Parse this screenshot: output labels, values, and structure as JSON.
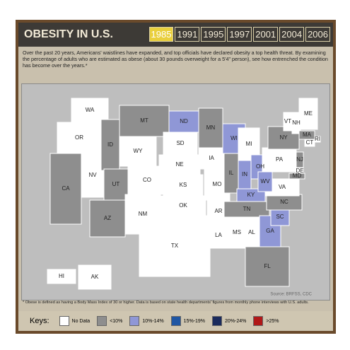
{
  "header": {
    "title": "OBESITY IN U.S.",
    "years": [
      "1985",
      "1991",
      "1995",
      "1997",
      "2001",
      "2004",
      "2006"
    ],
    "selected_year": "1985"
  },
  "description": "Over the past 20 years, Americans' waistlines have expanded, and top officials have declared obesity a top health threat. By examining the percentage of adults who are estimated as obese (about 30 pounds overweight for a 5'4\" person), see how entrenched the condition has become over the years.*",
  "footnote": "* Obese is defined as having a Body Mass Index of 30 or higher. Data is based on state health departments' figures from monthly phone interviews with U.S. adults.",
  "source": "Source: BRFSS, CDC",
  "keys_label": "Keys:",
  "keys": [
    {
      "label": "No Data",
      "color": "#ffffff"
    },
    {
      "label": "<10%",
      "color": "#8e8e8e"
    },
    {
      "label": "10%-14%",
      "color": "#8f97d6"
    },
    {
      "label": "15%-19%",
      "color": "#1f56a3"
    },
    {
      "label": "20%-24%",
      "color": "#1b2b5c"
    },
    {
      "label": ">25%",
      "color": "#b01818"
    }
  ],
  "states": [
    {
      "label": "WA",
      "category": "No Data"
    },
    {
      "label": "OR",
      "category": "No Data"
    },
    {
      "label": "CA",
      "category": "<10%"
    },
    {
      "label": "NV",
      "category": "No Data"
    },
    {
      "label": "ID",
      "category": "<10%"
    },
    {
      "label": "MT",
      "category": "<10%"
    },
    {
      "label": "WY",
      "category": "No Data"
    },
    {
      "label": "UT",
      "category": "<10%"
    },
    {
      "label": "AZ",
      "category": "<10%"
    },
    {
      "label": "CO",
      "category": "No Data"
    },
    {
      "label": "NM",
      "category": "No Data"
    },
    {
      "label": "ND",
      "category": "10%-14%"
    },
    {
      "label": "SD",
      "category": "No Data"
    },
    {
      "label": "NE",
      "category": "No Data"
    },
    {
      "label": "KS",
      "category": "No Data"
    },
    {
      "label": "OK",
      "category": "No Data"
    },
    {
      "label": "TX",
      "category": "No Data"
    },
    {
      "label": "MN",
      "category": "<10%"
    },
    {
      "label": "IA",
      "category": "No Data"
    },
    {
      "label": "MO",
      "category": "No Data"
    },
    {
      "label": "AR",
      "category": "No Data"
    },
    {
      "label": "LA",
      "category": "No Data"
    },
    {
      "label": "WI",
      "category": "10%-14%"
    },
    {
      "label": "IL",
      "category": "<10%"
    },
    {
      "label": "MI",
      "category": "No Data"
    },
    {
      "label": "IN",
      "category": "10%-14%"
    },
    {
      "label": "OH",
      "category": "10%-14%"
    },
    {
      "label": "KY",
      "category": "10%-14%"
    },
    {
      "label": "TN",
      "category": "<10%"
    },
    {
      "label": "MS",
      "category": "No Data"
    },
    {
      "label": "AL",
      "category": "No Data"
    },
    {
      "label": "GA",
      "category": "10%-14%"
    },
    {
      "label": "FL",
      "category": "<10%"
    },
    {
      "label": "SC",
      "category": "10%-14%"
    },
    {
      "label": "NC",
      "category": "<10%"
    },
    {
      "label": "VA",
      "category": "No Data"
    },
    {
      "label": "WV",
      "category": "10%-14%"
    },
    {
      "label": "PA",
      "category": "No Data"
    },
    {
      "label": "NY",
      "category": "<10%"
    },
    {
      "label": "ME",
      "category": "No Data"
    },
    {
      "label": "NH",
      "category": "No Data"
    },
    {
      "label": "VT",
      "category": "No Data"
    },
    {
      "label": "MA",
      "category": "<10%"
    },
    {
      "label": "RI",
      "category": "No Data"
    },
    {
      "label": "CT",
      "category": "No Data"
    },
    {
      "label": "NJ",
      "category": "<10%"
    },
    {
      "label": "DE",
      "category": "No Data"
    },
    {
      "label": "MD",
      "category": "<10%"
    },
    {
      "label": "HI",
      "category": "No Data"
    },
    {
      "label": "AK",
      "category": "No Data"
    }
  ]
}
